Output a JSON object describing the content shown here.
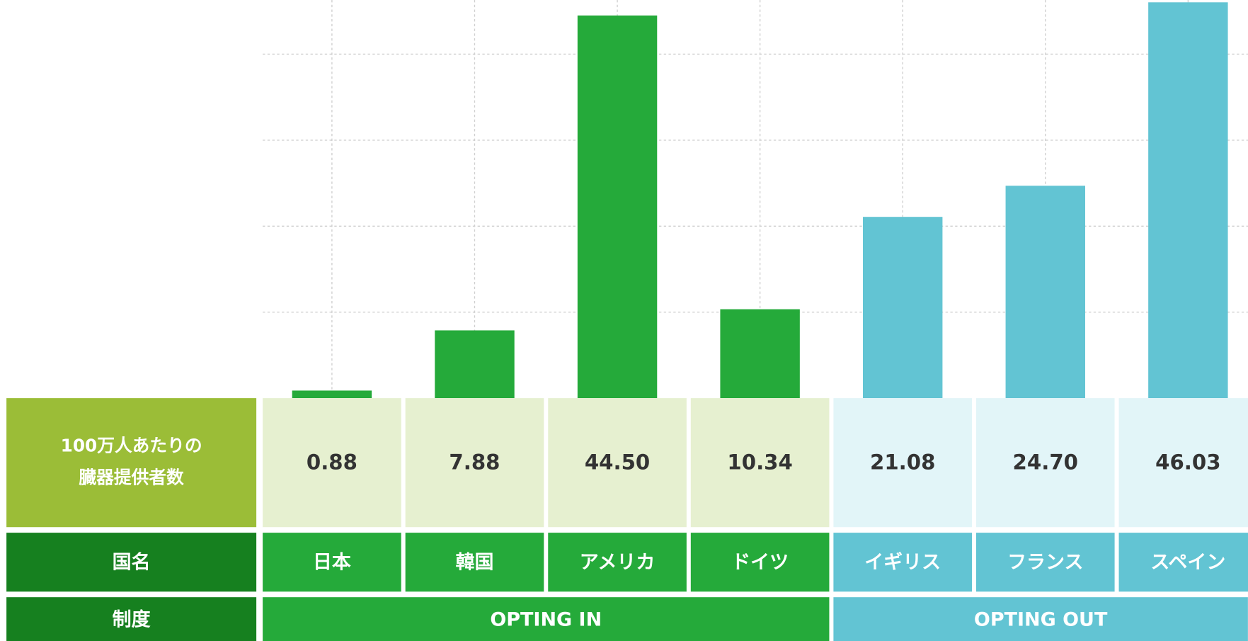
{
  "chart_data": {
    "type": "bar",
    "categories": [
      "日本",
      "韓国",
      "アメリカ",
      "ドイツ",
      "イギリス",
      "フランス",
      "スペイン"
    ],
    "values": [
      0.88,
      7.88,
      44.5,
      10.34,
      21.08,
      24.7,
      46.03
    ],
    "value_labels": [
      "0.88",
      "7.88",
      "44.50",
      "10.34",
      "21.08",
      "24.70",
      "46.03"
    ],
    "colors": [
      "#25aa3a",
      "#25aa3a",
      "#25aa3a",
      "#25aa3a",
      "#62c4d3",
      "#62c4d3",
      "#62c4d3"
    ],
    "ylim": [
      0,
      46.3
    ],
    "yticks": [
      10,
      20,
      30,
      40
    ],
    "grid": true,
    "row_labels": {
      "value": [
        "100万人あたりの",
        "臓器提供者数"
      ],
      "country": "国名",
      "system": "制度"
    },
    "groups": [
      {
        "label": "OPTING IN",
        "size": 4,
        "color": "#25aa3a",
        "light": "#e6f0d0"
      },
      {
        "label": "OPTING OUT",
        "size": 3,
        "color": "#62c4d3",
        "light": "#e2f5f8"
      }
    ]
  }
}
